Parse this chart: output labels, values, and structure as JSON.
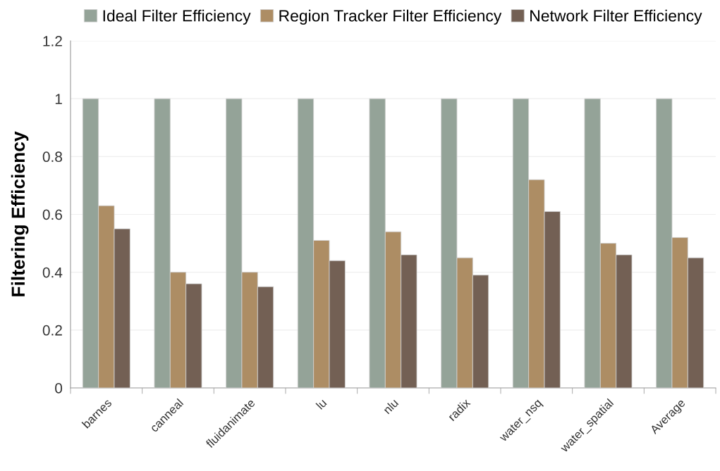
{
  "chart_data": {
    "type": "bar",
    "ylabel": "Filtering Efficiency",
    "categories": [
      "barnes",
      "canneal",
      "fluidanimate",
      "lu",
      "nlu",
      "radix",
      "water_nsq",
      "water_spatial",
      "Average"
    ],
    "series": [
      {
        "name": "Ideal Filter Efficiency",
        "color": "#94a398",
        "values": [
          1,
          1,
          1,
          1,
          1,
          1,
          1,
          1,
          1
        ]
      },
      {
        "name": "Region Tracker Filter Efficiency",
        "color": "#ad8d64",
        "values": [
          0.63,
          0.4,
          0.4,
          0.51,
          0.54,
          0.45,
          0.72,
          0.5,
          0.52
        ]
      },
      {
        "name": "Network Filter Efficiency",
        "color": "#736054",
        "values": [
          0.55,
          0.36,
          0.35,
          0.44,
          0.46,
          0.39,
          0.61,
          0.46,
          0.45
        ]
      }
    ],
    "ylim": [
      0,
      1.2
    ],
    "yticks": [
      0,
      0.2,
      0.4,
      0.6,
      0.8,
      1,
      1.2
    ],
    "grid": "y",
    "legend": "top"
  }
}
